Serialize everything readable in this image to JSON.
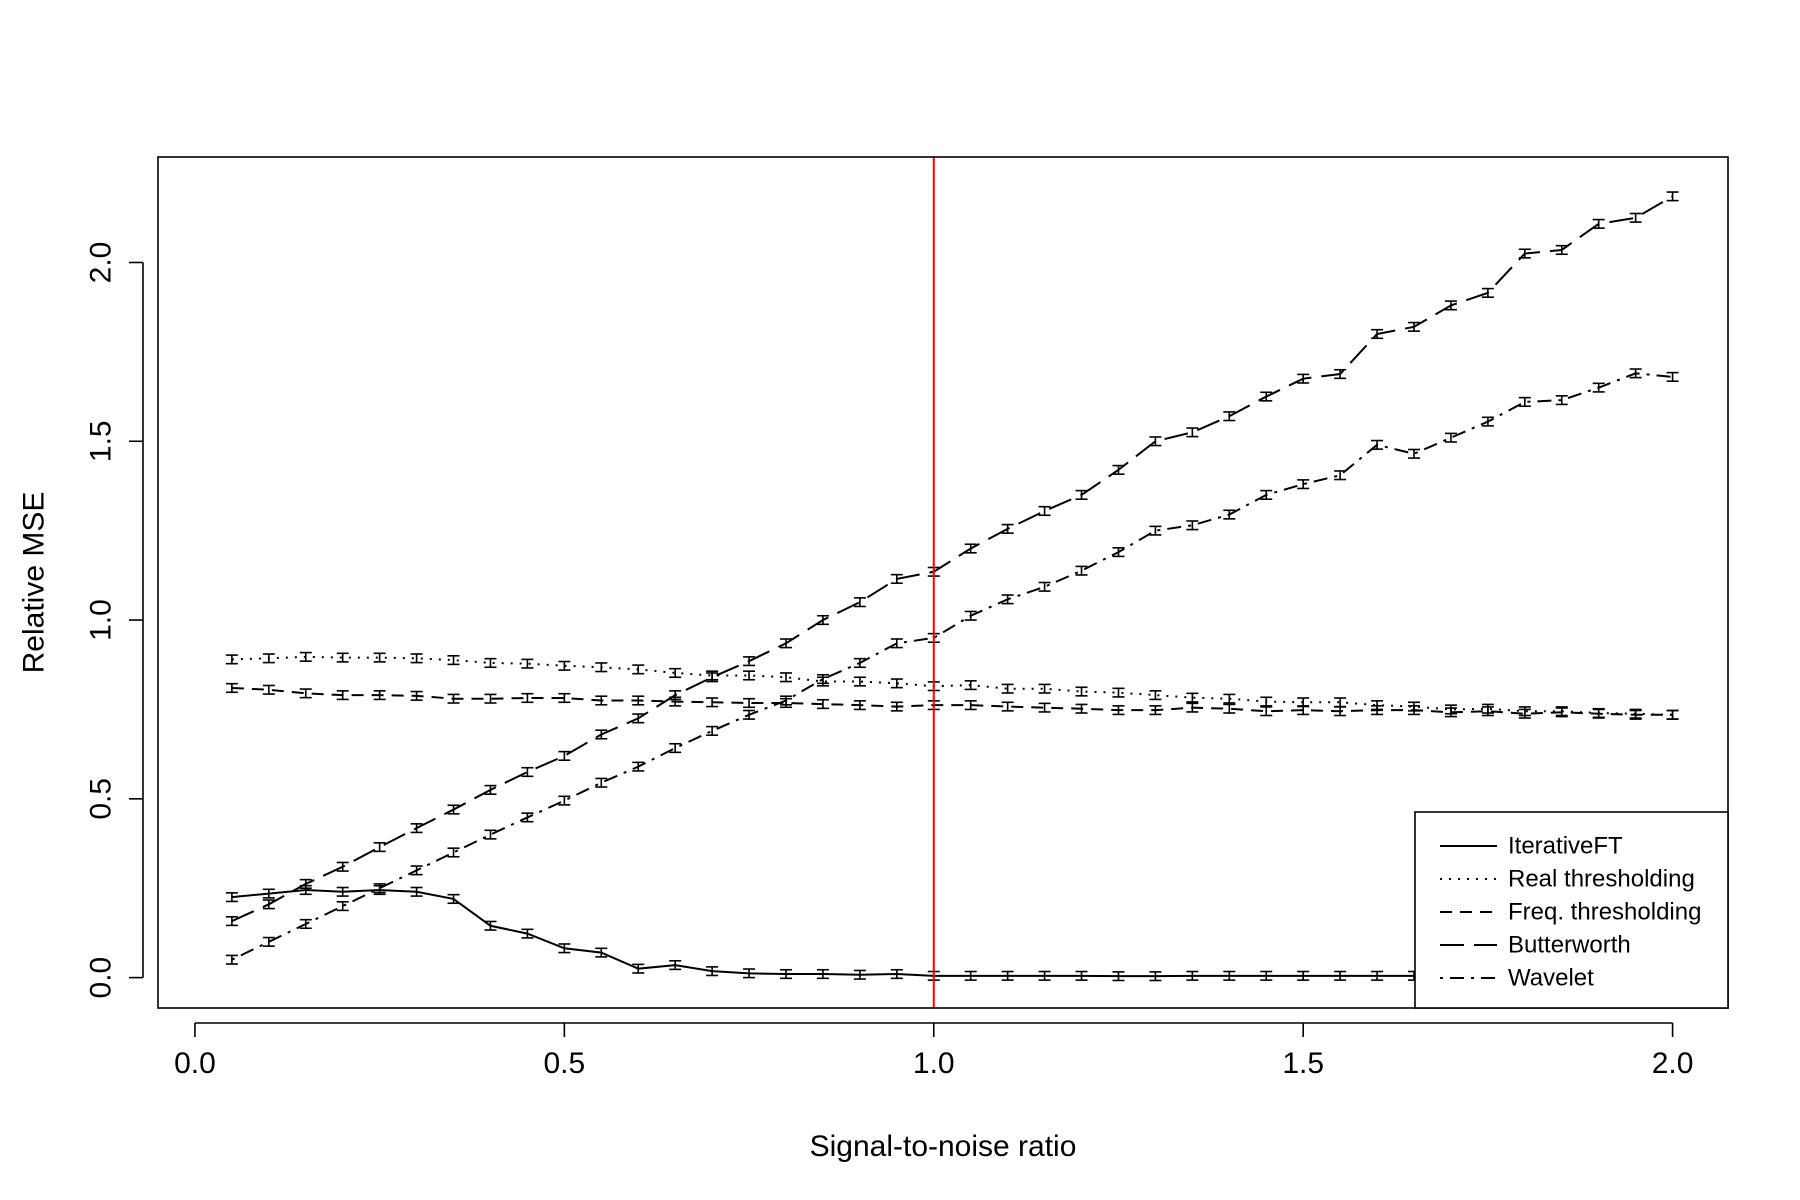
{
  "chart_data": {
    "type": "line",
    "title": "",
    "xlabel": "Signal-to-noise ratio",
    "ylabel": "Relative MSE",
    "xlim": [
      -0.05,
      2.075
    ],
    "ylim": [
      -0.085,
      2.295
    ],
    "xticks": [
      0.0,
      0.5,
      1.0,
      1.5,
      2.0
    ],
    "xtick_labels": [
      "0.0",
      "0.5",
      "1.0",
      "1.5",
      "2.0"
    ],
    "yticks": [
      0.0,
      0.5,
      1.0,
      1.5,
      2.0
    ],
    "ytick_labels": [
      "0.0",
      "0.5",
      "1.0",
      "1.5",
      "2.0"
    ],
    "grid": false,
    "legend_position": "bottom-right",
    "reference_line": {
      "x": 1.0,
      "color": "#ff0000"
    },
    "error_bar_halfwidth": 0.012,
    "x": [
      0.05,
      0.1,
      0.15,
      0.2,
      0.25,
      0.3,
      0.35,
      0.4,
      0.45,
      0.5,
      0.55,
      0.6,
      0.65,
      0.7,
      0.75,
      0.8,
      0.85,
      0.9,
      0.95,
      1.0,
      1.05,
      1.1,
      1.15,
      1.2,
      1.25,
      1.3,
      1.35,
      1.4,
      1.45,
      1.5,
      1.55,
      1.6,
      1.65,
      1.7,
      1.75,
      1.8,
      1.85,
      1.9,
      1.95,
      2.0
    ],
    "series": [
      {
        "name": "IterativeFT",
        "dash": "solid",
        "values": [
          0.225,
          0.235,
          0.245,
          0.24,
          0.245,
          0.24,
          0.22,
          0.145,
          0.123,
          0.082,
          0.07,
          0.025,
          0.035,
          0.018,
          0.012,
          0.01,
          0.01,
          0.008,
          0.01,
          0.005,
          0.005,
          0.005,
          0.005,
          0.005,
          0.004,
          0.004,
          0.005,
          0.005,
          0.005,
          0.005,
          0.005,
          0.005,
          0.005,
          0.005,
          0.005,
          0.005,
          0.005,
          0.005,
          0.005,
          0.005
        ]
      },
      {
        "name": "Real thresholding",
        "dash": "dotted",
        "values": [
          0.89,
          0.893,
          0.897,
          0.895,
          0.895,
          0.893,
          0.888,
          0.88,
          0.878,
          0.872,
          0.868,
          0.862,
          0.852,
          0.845,
          0.845,
          0.84,
          0.828,
          0.828,
          0.823,
          0.815,
          0.818,
          0.808,
          0.808,
          0.8,
          0.797,
          0.79,
          0.783,
          0.78,
          0.772,
          0.77,
          0.77,
          0.762,
          0.758,
          0.75,
          0.752,
          0.745,
          0.745,
          0.74,
          0.738,
          0.735
        ]
      },
      {
        "name": "Freq. thresholding",
        "dash": "dashed",
        "values": [
          0.81,
          0.805,
          0.795,
          0.79,
          0.79,
          0.788,
          0.78,
          0.78,
          0.782,
          0.782,
          0.775,
          0.775,
          0.772,
          0.77,
          0.768,
          0.768,
          0.765,
          0.762,
          0.758,
          0.762,
          0.762,
          0.758,
          0.755,
          0.752,
          0.748,
          0.748,
          0.755,
          0.752,
          0.745,
          0.748,
          0.745,
          0.748,
          0.748,
          0.742,
          0.745,
          0.738,
          0.742,
          0.738,
          0.735,
          0.735
        ]
      },
      {
        "name": "Butterworth",
        "dash": "longdash",
        "values": [
          0.158,
          0.205,
          0.262,
          0.31,
          0.365,
          0.418,
          0.47,
          0.525,
          0.575,
          0.62,
          0.68,
          0.725,
          0.79,
          0.84,
          0.885,
          0.935,
          1.0,
          1.05,
          1.115,
          1.135,
          1.2,
          1.255,
          1.305,
          1.35,
          1.42,
          1.5,
          1.525,
          1.57,
          1.625,
          1.675,
          1.688,
          1.8,
          1.82,
          1.88,
          1.915,
          2.025,
          2.035,
          2.108,
          2.125,
          2.185
        ]
      },
      {
        "name": "Wavelet",
        "dash": "dotdash",
        "values": [
          0.05,
          0.1,
          0.15,
          0.2,
          0.25,
          0.3,
          0.35,
          0.4,
          0.448,
          0.495,
          0.545,
          0.59,
          0.642,
          0.69,
          0.735,
          0.775,
          0.835,
          0.88,
          0.935,
          0.95,
          1.012,
          1.058,
          1.093,
          1.138,
          1.19,
          1.25,
          1.265,
          1.295,
          1.35,
          1.38,
          1.405,
          1.49,
          1.465,
          1.51,
          1.555,
          1.61,
          1.615,
          1.65,
          1.69,
          1.68
        ]
      }
    ]
  }
}
